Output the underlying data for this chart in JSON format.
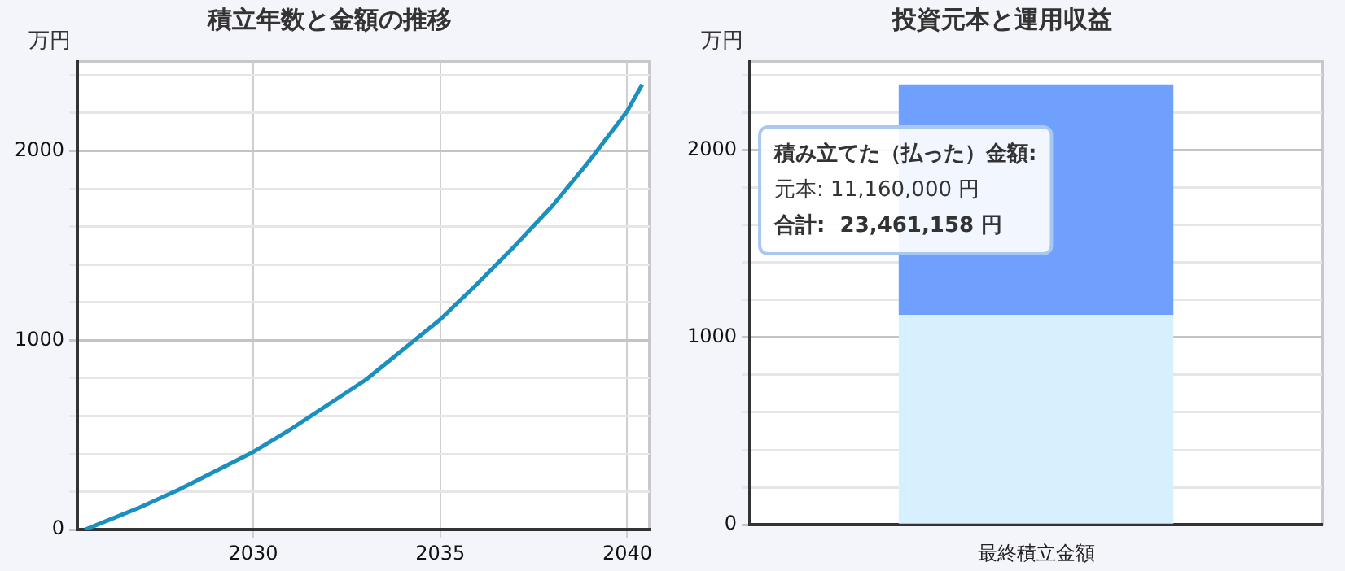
{
  "chart_data": [
    {
      "type": "line",
      "title": "積立年数と金額の推移",
      "ylabel": "万円",
      "marker": "none",
      "grid": true,
      "legend": false,
      "xlim": [
        2025.3,
        2040.6
      ],
      "xticks": [
        2030,
        2035,
        2040
      ],
      "ylim": [
        0,
        2470
      ],
      "yticks": [
        0,
        {
          "value": 200,
          "label": null
        },
        {
          "value": 400,
          "label": null
        },
        {
          "value": 600,
          "label": null
        },
        {
          "value": 800,
          "label": null
        },
        1000,
        {
          "value": 1200,
          "label": null
        },
        {
          "value": 1400,
          "label": null
        },
        {
          "value": 1600,
          "label": null
        },
        {
          "value": 1800,
          "label": null
        },
        2000,
        {
          "value": 2200,
          "label": null
        },
        {
          "value": 2400,
          "label": null
        }
      ],
      "x": [
        2025.5,
        2026,
        2027,
        2028,
        2029,
        2030,
        2031,
        2032,
        2033,
        2034,
        2035,
        2036,
        2037,
        2038,
        2039,
        2040,
        2040.4
      ],
      "series": [
        {
          "color": "#1a8fc0",
          "values": [
            0,
            40,
            120,
            210,
            310,
            410,
            530,
            660,
            790,
            950,
            1110,
            1300,
            1500,
            1710,
            1950,
            2210,
            2350
          ]
        }
      ]
    },
    {
      "type": "bar",
      "title": "投資元本と運用収益",
      "ylabel": "万円",
      "stacked": true,
      "grid": "y",
      "legend": false,
      "categories": [
        "最終積立金額"
      ],
      "ylim": [
        0,
        2470
      ],
      "yticks": [
        0,
        {
          "value": 200,
          "label": null
        },
        {
          "value": 400,
          "label": null
        },
        {
          "value": 600,
          "label": null
        },
        {
          "value": 800,
          "label": null
        },
        1000,
        {
          "value": 1200,
          "label": null
        },
        {
          "value": 1400,
          "label": null
        },
        {
          "value": 1600,
          "label": null
        },
        {
          "value": 1800,
          "label": null
        },
        2000,
        {
          "value": 2200,
          "label": null
        },
        {
          "value": 2400,
          "label": null
        }
      ],
      "series": [
        {
          "color": "#d6f1fd",
          "values": [
            1120
          ]
        },
        {
          "color": "#6fa0fe",
          "values": [
            1230
          ]
        }
      ],
      "annotations": [
        "積み立てた（払った）金額:",
        "元本: 11,160,000 円",
        "合計:  23,461,158 円"
      ]
    }
  ]
}
